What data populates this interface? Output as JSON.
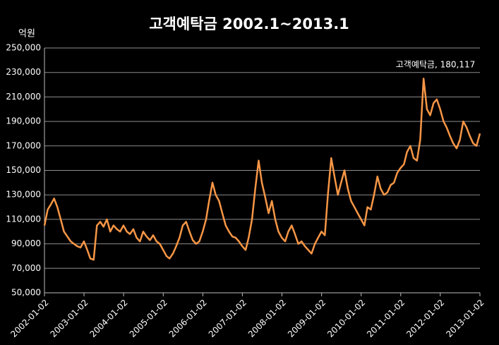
{
  "chart_data": {
    "type": "line",
    "title": "고객예탁금   2002.1~2013.1",
    "y_unit_label": "억원",
    "annotation": "고객예탁금, 180,117",
    "color": "#f79646",
    "grid": true,
    "ylim": [
      50000,
      250000
    ],
    "yticks": [
      {
        "value": 50000,
        "label": "50,000"
      },
      {
        "value": 70000,
        "label": "70,000"
      },
      {
        "value": 90000,
        "label": "90,000"
      },
      {
        "value": 110000,
        "label": "110,000"
      },
      {
        "value": 130000,
        "label": "130,000"
      },
      {
        "value": 150000,
        "label": "150,000"
      },
      {
        "value": 170000,
        "label": "170,000"
      },
      {
        "value": 190000,
        "label": "190,000"
      },
      {
        "value": 210000,
        "label": "210,000"
      },
      {
        "value": 230000,
        "label": "230,000"
      },
      {
        "value": 250000,
        "label": "250,000"
      }
    ],
    "xlim": [
      "2002-01-02",
      "2013-01-02"
    ],
    "xticks": [
      "2002-01-02",
      "2003-01-02",
      "2004-01-02",
      "2005-01-02",
      "2006-01-02",
      "2007-01-02",
      "2008-01-02",
      "2009-01-02",
      "2010-01-02",
      "2011-01-02",
      "2012-01-02",
      "2013-01-02"
    ],
    "x": [
      "2002-01-02",
      "2002-02-01",
      "2002-03-01",
      "2002-04-01",
      "2002-05-01",
      "2002-06-01",
      "2002-07-01",
      "2002-08-01",
      "2002-09-01",
      "2002-10-01",
      "2002-11-01",
      "2002-12-01",
      "2003-01-01",
      "2003-02-01",
      "2003-03-01",
      "2003-04-01",
      "2003-05-01",
      "2003-06-01",
      "2003-07-01",
      "2003-08-01",
      "2003-09-01",
      "2003-10-01",
      "2003-11-01",
      "2003-12-01",
      "2004-01-01",
      "2004-02-01",
      "2004-03-01",
      "2004-04-01",
      "2004-05-01",
      "2004-06-01",
      "2004-07-01",
      "2004-08-01",
      "2004-09-01",
      "2004-10-01",
      "2004-11-01",
      "2004-12-01",
      "2005-01-01",
      "2005-02-01",
      "2005-03-01",
      "2005-04-01",
      "2005-05-01",
      "2005-06-01",
      "2005-07-01",
      "2005-08-01",
      "2005-09-01",
      "2005-10-01",
      "2005-11-01",
      "2005-12-01",
      "2006-01-01",
      "2006-02-01",
      "2006-03-01",
      "2006-04-01",
      "2006-05-01",
      "2006-06-01",
      "2006-07-01",
      "2006-08-01",
      "2006-09-01",
      "2006-10-01",
      "2006-11-01",
      "2006-12-01",
      "2007-01-01",
      "2007-02-01",
      "2007-03-01",
      "2007-04-01",
      "2007-05-01",
      "2007-06-01",
      "2007-07-01",
      "2007-08-01",
      "2007-09-01",
      "2007-10-01",
      "2007-11-01",
      "2007-12-01",
      "2008-01-01",
      "2008-02-01",
      "2008-03-01",
      "2008-04-01",
      "2008-05-01",
      "2008-06-01",
      "2008-07-01",
      "2008-08-01",
      "2008-09-01",
      "2008-10-01",
      "2008-11-01",
      "2008-12-01",
      "2009-01-01",
      "2009-02-01",
      "2009-03-01",
      "2009-04-01",
      "2009-05-01",
      "2009-06-01",
      "2009-07-01",
      "2009-08-01",
      "2009-09-01",
      "2009-10-01",
      "2009-11-01",
      "2009-12-01",
      "2010-01-01",
      "2010-02-01",
      "2010-03-01",
      "2010-04-01",
      "2010-05-01",
      "2010-06-01",
      "2010-07-01",
      "2010-08-01",
      "2010-09-01",
      "2010-10-01",
      "2010-11-01",
      "2010-12-01",
      "2011-01-01",
      "2011-02-01",
      "2011-03-01",
      "2011-04-01",
      "2011-05-01",
      "2011-06-01",
      "2011-07-01",
      "2011-08-01",
      "2011-09-01",
      "2011-10-01",
      "2011-11-01",
      "2011-12-01",
      "2012-01-01",
      "2012-02-01",
      "2012-03-01",
      "2012-04-01",
      "2012-05-01",
      "2012-06-01",
      "2012-07-01",
      "2012-08-01",
      "2012-09-01",
      "2012-10-01",
      "2012-11-01",
      "2012-12-01",
      "2013-01-02"
    ],
    "values": [
      105000,
      118000,
      122000,
      127000,
      120000,
      110000,
      100000,
      96000,
      92000,
      90000,
      88000,
      87000,
      92000,
      85000,
      78000,
      77000,
      105000,
      108000,
      104000,
      110000,
      100000,
      105000,
      102000,
      100000,
      105000,
      100000,
      98000,
      102000,
      95000,
      92000,
      100000,
      96000,
      93000,
      97000,
      92000,
      90000,
      85000,
      80000,
      78000,
      82000,
      88000,
      95000,
      105000,
      108000,
      100000,
      93000,
      90000,
      92000,
      100000,
      110000,
      125000,
      140000,
      130000,
      125000,
      115000,
      105000,
      100000,
      96000,
      95000,
      92000,
      88000,
      85000,
      95000,
      110000,
      135000,
      158000,
      140000,
      128000,
      115000,
      125000,
      110000,
      100000,
      95000,
      92000,
      100000,
      105000,
      98000,
      90000,
      92000,
      88000,
      85000,
      82000,
      90000,
      95000,
      100000,
      97000,
      130000,
      160000,
      145000,
      130000,
      140000,
      150000,
      135000,
      125000,
      120000,
      115000,
      110000,
      105000,
      120000,
      118000,
      130000,
      145000,
      135000,
      130000,
      132000,
      138000,
      140000,
      148000,
      152000,
      155000,
      165000,
      170000,
      160000,
      158000,
      175000,
      225000,
      200000,
      195000,
      205000,
      208000,
      200000,
      190000,
      185000,
      178000,
      172000,
      168000,
      175000,
      190000,
      185000,
      178000,
      172000,
      170000,
      180117
    ]
  }
}
